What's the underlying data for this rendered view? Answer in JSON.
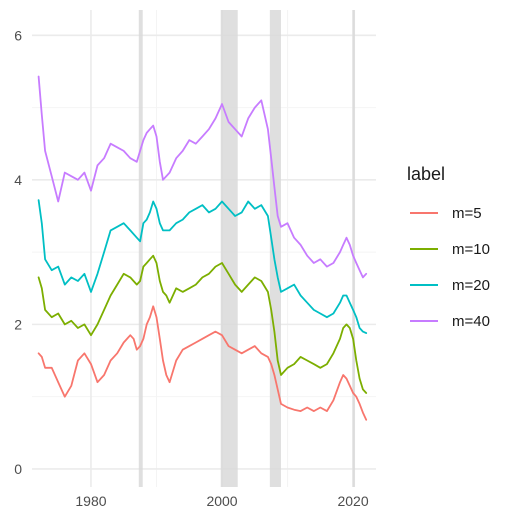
{
  "chart_data": {
    "type": "line",
    "title": "",
    "xlabel": "",
    "ylabel": "",
    "xlim": [
      1971.0,
      2023.5
    ],
    "ylim": [
      -0.25,
      6.35
    ],
    "x_ticks": [
      1980,
      2000,
      2020
    ],
    "x_tick_labels": [
      "1980",
      "2000",
      "2020"
    ],
    "x_minor_ticks": [
      1970,
      1990,
      2010
    ],
    "y_ticks": [
      0,
      2,
      4,
      6
    ],
    "y_tick_labels": [
      "0",
      "2",
      "4",
      "6"
    ],
    "y_minor_ticks": [
      1,
      3,
      5
    ],
    "grid": true,
    "legend_position": "right",
    "legend_title": "label",
    "recession_bands": [
      [
        1987.3,
        1987.9
      ],
      [
        1999.8,
        2002.4
      ],
      [
        2007.3,
        2009.0
      ],
      [
        2019.9,
        2020.3
      ]
    ],
    "colors": {
      "background": "#ffffff",
      "grid_major": "#ebebeb",
      "grid_minor": "#f4f4f4",
      "band": "#d9d9d9"
    },
    "series": [
      {
        "name": "m=5",
        "color": "#F8766D",
        "x": [
          1972.0,
          1972.5,
          1973.0,
          1974.0,
          1975.0,
          1976.0,
          1977.0,
          1978.0,
          1979.0,
          1980.0,
          1981.0,
          1982.0,
          1983.0,
          1984.0,
          1985.0,
          1986.0,
          1986.5,
          1987.0,
          1987.5,
          1988.0,
          1988.5,
          1989.0,
          1989.5,
          1990.0,
          1990.5,
          1991.0,
          1991.5,
          1992.0,
          1993.0,
          1994.0,
          1995.0,
          1996.0,
          1997.0,
          1998.0,
          1999.0,
          2000.0,
          2001.0,
          2002.0,
          2003.0,
          2004.0,
          2005.0,
          2006.0,
          2007.0,
          2007.5,
          2008.0,
          2008.5,
          2009.0,
          2010.0,
          2011.0,
          2012.0,
          2013.0,
          2014.0,
          2015.0,
          2016.0,
          2017.0,
          2018.0,
          2018.5,
          2019.0,
          2019.5,
          2020.0,
          2020.5,
          2021.0,
          2021.5,
          2022.0
        ],
        "values": [
          1.6,
          1.55,
          1.4,
          1.4,
          1.2,
          1.0,
          1.15,
          1.5,
          1.6,
          1.45,
          1.2,
          1.3,
          1.5,
          1.6,
          1.75,
          1.85,
          1.8,
          1.65,
          1.7,
          1.8,
          2.0,
          2.1,
          2.25,
          2.1,
          1.8,
          1.5,
          1.3,
          1.2,
          1.5,
          1.65,
          1.7,
          1.75,
          1.8,
          1.85,
          1.9,
          1.85,
          1.7,
          1.65,
          1.6,
          1.65,
          1.7,
          1.6,
          1.55,
          1.45,
          1.3,
          1.1,
          0.9,
          0.85,
          0.82,
          0.8,
          0.85,
          0.8,
          0.85,
          0.8,
          0.95,
          1.2,
          1.3,
          1.25,
          1.15,
          1.05,
          1.0,
          0.9,
          0.78,
          0.68
        ]
      },
      {
        "name": "m=10",
        "color": "#7CAE00",
        "x": [
          1972.0,
          1972.5,
          1973.0,
          1974.0,
          1975.0,
          1976.0,
          1977.0,
          1978.0,
          1979.0,
          1980.0,
          1981.0,
          1982.0,
          1983.0,
          1984.0,
          1985.0,
          1986.0,
          1987.0,
          1987.5,
          1988.0,
          1988.5,
          1989.0,
          1989.5,
          1990.0,
          1990.5,
          1991.0,
          1991.5,
          1992.0,
          1993.0,
          1994.0,
          1995.0,
          1996.0,
          1997.0,
          1998.0,
          1999.0,
          2000.0,
          2001.0,
          2002.0,
          2003.0,
          2004.0,
          2005.0,
          2006.0,
          2007.0,
          2007.5,
          2008.0,
          2008.5,
          2009.0,
          2010.0,
          2011.0,
          2012.0,
          2013.0,
          2014.0,
          2015.0,
          2016.0,
          2017.0,
          2018.0,
          2018.5,
          2019.0,
          2019.5,
          2020.0,
          2020.5,
          2021.0,
          2021.5,
          2022.0
        ],
        "values": [
          2.65,
          2.5,
          2.2,
          2.1,
          2.15,
          2.0,
          2.05,
          1.95,
          2.0,
          1.85,
          2.0,
          2.2,
          2.4,
          2.55,
          2.7,
          2.65,
          2.55,
          2.6,
          2.8,
          2.85,
          2.9,
          2.95,
          2.85,
          2.6,
          2.45,
          2.4,
          2.3,
          2.5,
          2.45,
          2.5,
          2.55,
          2.65,
          2.7,
          2.8,
          2.85,
          2.7,
          2.55,
          2.45,
          2.55,
          2.65,
          2.6,
          2.45,
          2.2,
          1.9,
          1.5,
          1.3,
          1.4,
          1.45,
          1.55,
          1.5,
          1.45,
          1.4,
          1.45,
          1.6,
          1.8,
          1.95,
          2.0,
          1.95,
          1.8,
          1.5,
          1.25,
          1.1,
          1.05
        ]
      },
      {
        "name": "m=20",
        "color": "#00BFC4",
        "x": [
          1972.0,
          1972.5,
          1973.0,
          1974.0,
          1975.0,
          1976.0,
          1977.0,
          1978.0,
          1979.0,
          1980.0,
          1981.0,
          1982.0,
          1983.0,
          1984.0,
          1985.0,
          1986.0,
          1987.0,
          1987.5,
          1988.0,
          1988.5,
          1989.0,
          1989.5,
          1990.0,
          1990.5,
          1991.0,
          1992.0,
          1993.0,
          1994.0,
          1995.0,
          1996.0,
          1997.0,
          1998.0,
          1999.0,
          2000.0,
          2001.0,
          2002.0,
          2003.0,
          2004.0,
          2005.0,
          2006.0,
          2007.0,
          2007.5,
          2008.0,
          2008.5,
          2009.0,
          2010.0,
          2011.0,
          2012.0,
          2013.0,
          2014.0,
          2015.0,
          2016.0,
          2017.0,
          2018.0,
          2018.5,
          2019.0,
          2019.5,
          2020.0,
          2020.5,
          2021.0,
          2021.5,
          2022.0
        ],
        "values": [
          3.72,
          3.4,
          2.9,
          2.75,
          2.8,
          2.55,
          2.65,
          2.6,
          2.7,
          2.45,
          2.7,
          3.0,
          3.3,
          3.35,
          3.4,
          3.3,
          3.2,
          3.15,
          3.4,
          3.45,
          3.55,
          3.7,
          3.6,
          3.4,
          3.3,
          3.3,
          3.4,
          3.45,
          3.55,
          3.6,
          3.65,
          3.55,
          3.6,
          3.7,
          3.6,
          3.5,
          3.55,
          3.7,
          3.6,
          3.65,
          3.5,
          3.2,
          2.9,
          2.65,
          2.45,
          2.5,
          2.55,
          2.4,
          2.3,
          2.2,
          2.15,
          2.1,
          2.15,
          2.3,
          2.4,
          2.4,
          2.3,
          2.2,
          2.1,
          1.95,
          1.9,
          1.88
        ]
      },
      {
        "name": "m=40",
        "color": "#C77CFF",
        "x": [
          1972.0,
          1972.5,
          1973.0,
          1974.0,
          1975.0,
          1976.0,
          1977.0,
          1978.0,
          1979.0,
          1980.0,
          1981.0,
          1982.0,
          1983.0,
          1984.0,
          1985.0,
          1986.0,
          1987.0,
          1987.5,
          1988.0,
          1988.5,
          1989.0,
          1989.5,
          1990.0,
          1990.5,
          1991.0,
          1992.0,
          1993.0,
          1994.0,
          1995.0,
          1996.0,
          1997.0,
          1998.0,
          1999.0,
          2000.0,
          2001.0,
          2002.0,
          2003.0,
          2004.0,
          2005.0,
          2006.0,
          2007.0,
          2007.5,
          2008.0,
          2008.5,
          2009.0,
          2010.0,
          2011.0,
          2012.0,
          2013.0,
          2014.0,
          2015.0,
          2016.0,
          2017.0,
          2018.0,
          2018.5,
          2019.0,
          2019.5,
          2020.0,
          2020.5,
          2021.0,
          2021.5,
          2022.0
        ],
        "values": [
          5.43,
          4.9,
          4.4,
          4.05,
          3.7,
          4.1,
          4.05,
          4.0,
          4.1,
          3.85,
          4.2,
          4.3,
          4.5,
          4.45,
          4.4,
          4.3,
          4.25,
          4.4,
          4.55,
          4.65,
          4.7,
          4.75,
          4.6,
          4.25,
          4.0,
          4.1,
          4.3,
          4.4,
          4.55,
          4.5,
          4.6,
          4.7,
          4.85,
          5.05,
          4.8,
          4.7,
          4.6,
          4.85,
          5.0,
          5.1,
          4.7,
          4.3,
          3.9,
          3.5,
          3.35,
          3.4,
          3.2,
          3.1,
          2.95,
          2.85,
          2.9,
          2.8,
          2.85,
          3.0,
          3.1,
          3.2,
          3.1,
          2.95,
          2.85,
          2.75,
          2.65,
          2.7
        ]
      }
    ]
  }
}
